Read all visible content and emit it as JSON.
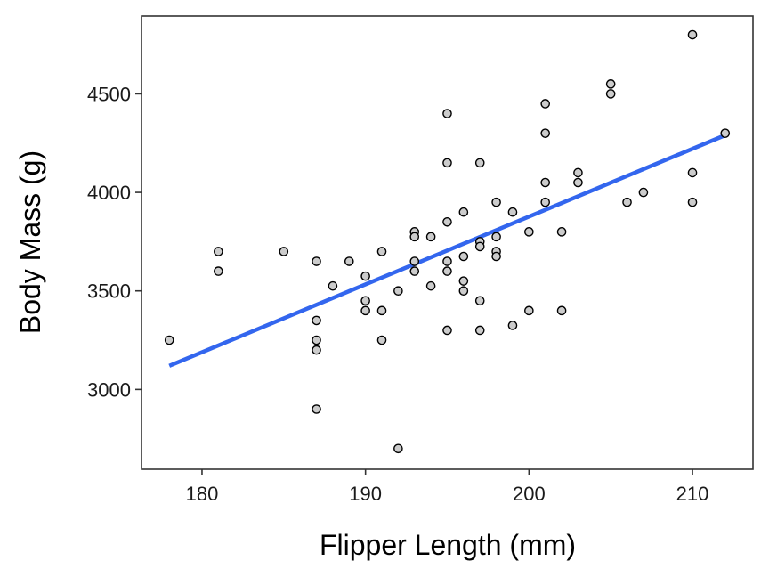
{
  "chart_data": {
    "type": "scatter",
    "xlabel": "Flipper Length (mm)",
    "ylabel": "Body Mass (g)",
    "xlim": [
      176.3,
      213.7
    ],
    "ylim": [
      2595,
      4895
    ],
    "xticks": [
      180,
      190,
      200,
      210
    ],
    "yticks": [
      3000,
      3500,
      4000,
      4500
    ],
    "grid": false,
    "colors": {
      "points_fill": "#cccccc",
      "points_stroke": "#000000",
      "trend": "#3366ee"
    },
    "points": [
      [
        178,
        3250
      ],
      [
        181,
        3700
      ],
      [
        181,
        3600
      ],
      [
        185,
        3700
      ],
      [
        187,
        3650
      ],
      [
        187,
        3350
      ],
      [
        187,
        3250
      ],
      [
        187,
        3200
      ],
      [
        187,
        2900
      ],
      [
        188,
        3525
      ],
      [
        189,
        3650
      ],
      [
        190,
        3575
      ],
      [
        190,
        3450
      ],
      [
        190,
        3400
      ],
      [
        191,
        3700
      ],
      [
        191,
        3400
      ],
      [
        191,
        3250
      ],
      [
        192,
        3500
      ],
      [
        192,
        2700
      ],
      [
        193,
        3800
      ],
      [
        193,
        3775
      ],
      [
        193,
        3650
      ],
      [
        193,
        3600
      ],
      [
        194,
        3775
      ],
      [
        194,
        3525
      ],
      [
        195,
        4400
      ],
      [
        195,
        4150
      ],
      [
        195,
        3850
      ],
      [
        195,
        3650
      ],
      [
        195,
        3600
      ],
      [
        195,
        3300
      ],
      [
        196,
        3900
      ],
      [
        196,
        3675
      ],
      [
        196,
        3550
      ],
      [
        196,
        3500
      ],
      [
        197,
        4150
      ],
      [
        197,
        3750
      ],
      [
        197,
        3725
      ],
      [
        197,
        3450
      ],
      [
        197,
        3300
      ],
      [
        198,
        3950
      ],
      [
        198,
        3775
      ],
      [
        198,
        3700
      ],
      [
        198,
        3675
      ],
      [
        199,
        3900
      ],
      [
        199,
        3325
      ],
      [
        200,
        3800
      ],
      [
        200,
        3400
      ],
      [
        201,
        4450
      ],
      [
        201,
        4300
      ],
      [
        201,
        4050
      ],
      [
        201,
        3950
      ],
      [
        202,
        3800
      ],
      [
        202,
        3400
      ],
      [
        203,
        4100
      ],
      [
        203,
        4050
      ],
      [
        205,
        4550
      ],
      [
        205,
        4500
      ],
      [
        206,
        3950
      ],
      [
        207,
        4000
      ],
      [
        210,
        4800
      ],
      [
        210,
        4100
      ],
      [
        210,
        3950
      ],
      [
        212,
        4300
      ]
    ],
    "trend_line": {
      "x": [
        178,
        212
      ],
      "y": [
        3120,
        4290
      ]
    }
  }
}
